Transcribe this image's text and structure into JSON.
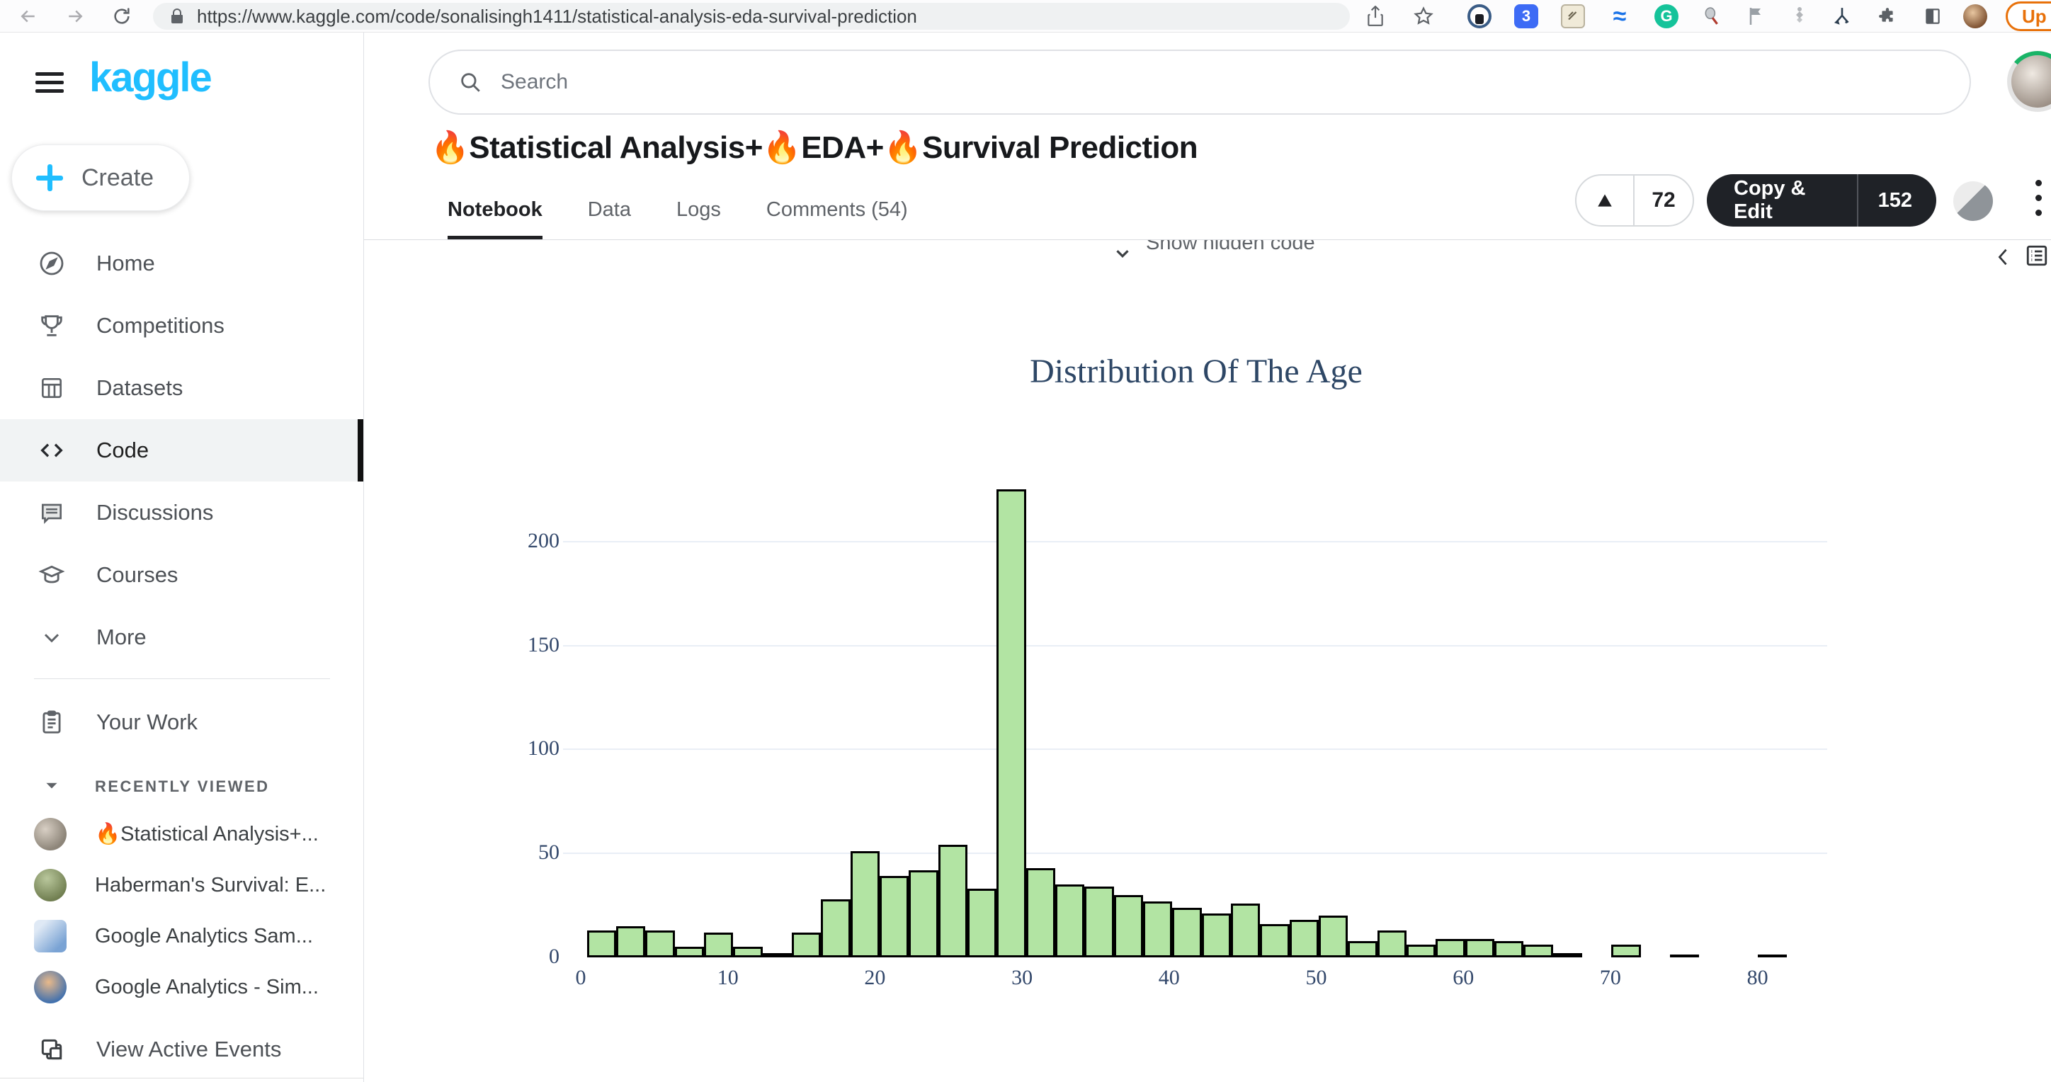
{
  "browser": {
    "url": "https://www.kaggle.com/code/sonalisingh1411/statistical-analysis-eda-survival-prediction",
    "update_button": "Up",
    "extension_tag_label": "3",
    "grammarly_label": "G",
    "icons": [
      "back-icon",
      "forward-icon",
      "reload-icon",
      "lock-icon",
      "share-icon",
      "bookmark-star-icon",
      "password-manager-icon",
      "tag-icon",
      "notes-icon",
      "wave-icon",
      "grammarly-icon",
      "racket-icon",
      "flag-icon",
      "stack-icon",
      "fork-icon",
      "puzzle-icon",
      "sidebar-toggle-icon",
      "browser-profile-avatar"
    ]
  },
  "sidebar": {
    "logo": "kaggle",
    "create_label": "Create",
    "nav": [
      "Home",
      "Competitions",
      "Datasets",
      "Code",
      "Discussions",
      "Courses",
      "More"
    ],
    "active_item": "Code",
    "your_work": "Your Work",
    "recently_viewed_label": "RECENTLY VIEWED",
    "recent": [
      "🔥Statistical Analysis+...",
      "Haberman's Survival: E...",
      "Google Analytics Sam...",
      "Google Analytics - Sim..."
    ],
    "view_active_events": "View Active Events"
  },
  "header": {
    "search_placeholder": "Search",
    "title": "🔥Statistical Analysis+🔥EDA+🔥Survival Prediction",
    "tabs": [
      "Notebook",
      "Data",
      "Logs",
      "Comments (54)"
    ],
    "active_tab": "Notebook",
    "upvote_count": "72",
    "copy_edit_label": "Copy & Edit",
    "copy_edit_count": "152"
  },
  "notebook": {
    "show_hidden_code": "Show hidden code"
  },
  "chart_data": {
    "type": "histogram",
    "title": "Distribution Of The Age",
    "xlabel": "",
    "ylabel": "",
    "bin_start": 0.42,
    "bin_width": 1.99,
    "counts": [
      13,
      15,
      13,
      5,
      12,
      5,
      2,
      12,
      28,
      51,
      39,
      42,
      54,
      33,
      225,
      43,
      35,
      34,
      30,
      27,
      24,
      21,
      26,
      16,
      18,
      20,
      8,
      13,
      6,
      9,
      9,
      8,
      6,
      2,
      0,
      6,
      0,
      1,
      0,
      0,
      1
    ],
    "xticks": [
      0,
      10,
      20,
      30,
      40,
      50,
      60,
      70,
      80
    ],
    "yticks": [
      0,
      50,
      100,
      150,
      200
    ],
    "xlim": [
      -2,
      84
    ],
    "ylim": [
      0,
      237
    ],
    "grid": true,
    "legend": false,
    "bar_color": "#b2e4a3",
    "bar_edge_color": "#000000",
    "gridline_color": "#e9eef6",
    "axis_text_color": "#33486b",
    "title_color": "#2e4766"
  }
}
